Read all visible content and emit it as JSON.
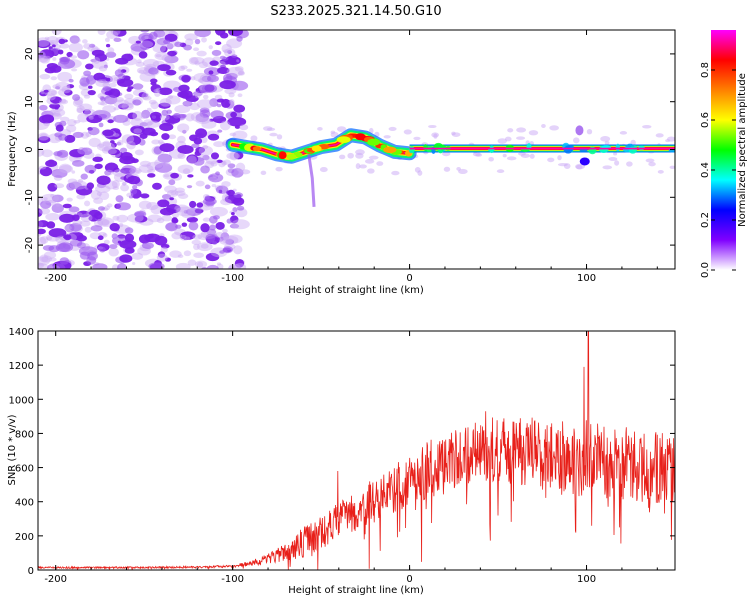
{
  "title": "S233.2025.321.14.50.G10",
  "chart_data": [
    {
      "type": "heatmap",
      "name": "spectrogram",
      "xlabel": "Height of straight line (km)",
      "ylabel": "Frequency (Hz)",
      "xlim": [
        -210,
        150
      ],
      "ylim": [
        -25,
        25
      ],
      "xticks": [
        -200,
        -100,
        0,
        100
      ],
      "yticks": [
        -20,
        -10,
        0,
        10,
        20
      ],
      "colorbar": {
        "label": "Normalized spectral amplitude",
        "ticks": [
          0.0,
          0.2,
          0.4,
          0.6,
          0.8
        ],
        "range": [
          0,
          0.96
        ],
        "colors": [
          "#ffffff",
          "#8000ff",
          "#0000ff",
          "#00ffff",
          "#00ff00",
          "#ffff00",
          "#ff8000",
          "#ff0000",
          "#ff00ff"
        ]
      },
      "features": [
        {
          "label": "noise region",
          "x_range": [
            -210,
            -100
          ],
          "freq_range": [
            -25,
            25
          ],
          "amplitude": [
            0.02,
            0.1
          ]
        },
        {
          "label": "carrier track",
          "x_range": [
            -100,
            0
          ],
          "freq_center": [
            1.0,
            0.5,
            0.0,
            -1.0,
            -1.5,
            -0.5,
            0.5,
            1.0,
            3.0,
            2.5,
            0.8,
            -0.5,
            -0.8
          ],
          "amplitude": [
            0.3,
            0.96
          ]
        },
        {
          "label": "carrier line",
          "x_range": [
            0,
            150
          ],
          "freq_center": 0.2,
          "amplitude": 0.96
        }
      ]
    },
    {
      "type": "line",
      "name": "snr",
      "xlabel": "Height of straight line (km)",
      "ylabel": "SNR (10 * v/v)",
      "xlim": [
        -210,
        150
      ],
      "ylim": [
        0,
        1400
      ],
      "xticks": [
        -200,
        -100,
        0,
        100
      ],
      "yticks": [
        0,
        200,
        400,
        600,
        800,
        1000,
        1200,
        1400
      ],
      "color": "#e8201a",
      "series": [
        {
          "name": "SNR",
          "x": [
            -210,
            -180,
            -150,
            -120,
            -100,
            -90,
            -80,
            -70,
            -60,
            -50,
            -40,
            -30,
            -20,
            -10,
            0,
            10,
            20,
            30,
            40,
            50,
            60,
            70,
            80,
            90,
            100,
            110,
            120,
            130,
            140,
            150
          ],
          "values": [
            15,
            15,
            15,
            18,
            22,
            40,
            70,
            110,
            170,
            230,
            300,
            360,
            420,
            480,
            540,
            600,
            640,
            680,
            710,
            720,
            720,
            710,
            690,
            670,
            680,
            660,
            650,
            630,
            620,
            610
          ],
          "noise_amplitude": [
            5,
            5,
            5,
            6,
            8,
            15,
            30,
            60,
            90,
            100,
            110,
            120,
            130,
            140,
            160,
            170,
            180,
            180,
            190,
            200,
            200,
            210,
            210,
            220,
            240,
            220,
            220,
            210,
            210,
            210
          ],
          "peaks": [
            {
              "x": -40.5,
              "value": 580
            },
            {
              "x": 98.5,
              "value": 1190
            },
            {
              "x": 101,
              "value": 1400
            },
            {
              "x": 43,
              "value": 930
            }
          ]
        }
      ]
    }
  ]
}
